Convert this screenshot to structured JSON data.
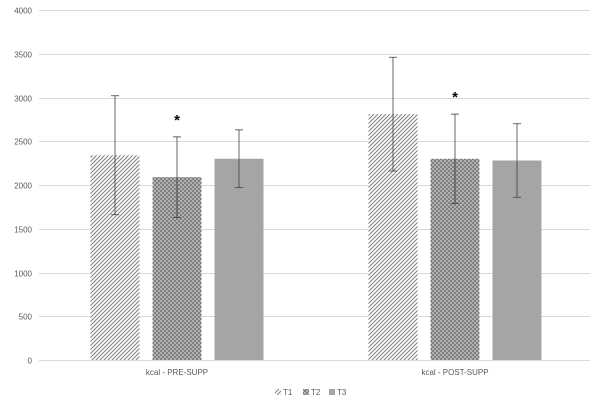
{
  "chart_data": {
    "type": "bar",
    "categories": [
      "kcal - PRE-SUPP",
      "kcal - POST-SUPP"
    ],
    "series": [
      {
        "name": "T1",
        "values": [
          2340,
          2810
        ],
        "error": [
          680,
          650
        ],
        "pattern": "diagonal-hatch"
      },
      {
        "name": "T2",
        "values": [
          2090,
          2300
        ],
        "error": [
          460,
          510
        ],
        "pattern": "dotted"
      },
      {
        "name": "T3",
        "values": [
          2300,
          2280
        ],
        "error": [
          330,
          420
        ],
        "pattern": "solid"
      }
    ],
    "annotations": [
      {
        "text": "*",
        "category": 0,
        "series": 1
      },
      {
        "text": "*",
        "category": 1,
        "series": 1
      }
    ],
    "ylim": [
      0,
      4000
    ],
    "yticks": [
      0,
      500,
      1000,
      1500,
      2000,
      2500,
      3000,
      3500,
      4000
    ],
    "grid": true,
    "legend_position": "bottom",
    "colors": {
      "bar": "#a5a5a5",
      "gridline": "#d9d9d9",
      "errorbar": "#404040",
      "text": "#595959"
    }
  }
}
